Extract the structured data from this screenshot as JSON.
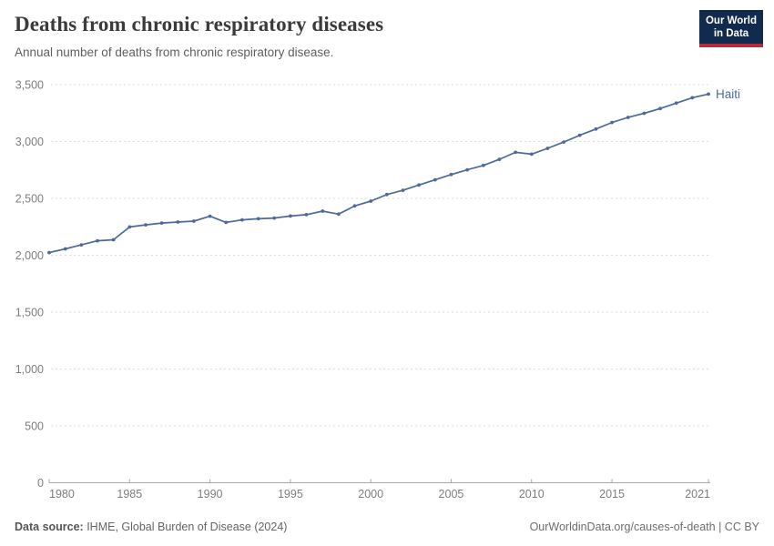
{
  "header": {
    "title": "Deaths from chronic respiratory diseases",
    "subtitle": "Annual number of deaths from chronic respiratory disease.",
    "logo": {
      "line1": "Our World",
      "line2": "in Data"
    }
  },
  "footer": {
    "source_label": "Data source:",
    "source_text": " IHME, Global Burden of Disease (2024)",
    "link_text": "OurWorldinData.org/causes-of-death | CC BY"
  },
  "colors": {
    "line": "#4c6a9c",
    "entity_label": "#4c6a9c",
    "grid": "#dedede",
    "axis": "#a8a8a8",
    "logo_bg": "#122a4e",
    "logo_bar": "#b52b38",
    "title_text": "#3b3b3b",
    "subtitle_text": "#5e5e5e",
    "tick_text": "#7d7d7d",
    "footer_text": "#646464"
  },
  "chart_data": {
    "type": "line",
    "title": "Deaths from chronic respiratory diseases",
    "subtitle": "Annual number of deaths from chronic respiratory disease.",
    "xlabel": "",
    "ylabel": "",
    "xlim": [
      1980,
      2021
    ],
    "ylim": [
      0,
      3500
    ],
    "grid": "horizontal-dashed",
    "legend": "end-of-line-label",
    "x": [
      1980,
      1981,
      1982,
      1983,
      1984,
      1985,
      1986,
      1987,
      1988,
      1989,
      1990,
      1991,
      1992,
      1993,
      1994,
      1995,
      1996,
      1997,
      1998,
      1999,
      2000,
      2001,
      2002,
      2003,
      2004,
      2005,
      2006,
      2007,
      2008,
      2009,
      2010,
      2011,
      2012,
      2013,
      2014,
      2015,
      2016,
      2017,
      2018,
      2019,
      2020,
      2021
    ],
    "series": [
      {
        "name": "Haiti",
        "values": [
          2023,
          2056,
          2091,
          2127,
          2136,
          2249,
          2267,
          2283,
          2292,
          2300,
          2343,
          2289,
          2311,
          2321,
          2327,
          2345,
          2357,
          2388,
          2362,
          2434,
          2476,
          2534,
          2571,
          2618,
          2663,
          2710,
          2751,
          2790,
          2843,
          2905,
          2889,
          2940,
          2995,
          3055,
          3110,
          3167,
          3212,
          3248,
          3290,
          3338,
          3385,
          3417
        ]
      }
    ],
    "yticks": [
      0,
      500,
      1000,
      1500,
      2000,
      2500,
      3000,
      3500
    ],
    "ytick_labels": [
      "0",
      "500",
      "1,000",
      "1,500",
      "2,000",
      "2,500",
      "3,000",
      "3,500"
    ],
    "xticks": [
      1980,
      1985,
      1990,
      1995,
      2000,
      2005,
      2010,
      2015,
      2021
    ],
    "xtick_labels": [
      "1980",
      "1985",
      "1990",
      "1995",
      "2000",
      "2005",
      "2010",
      "2015",
      "2021"
    ]
  }
}
